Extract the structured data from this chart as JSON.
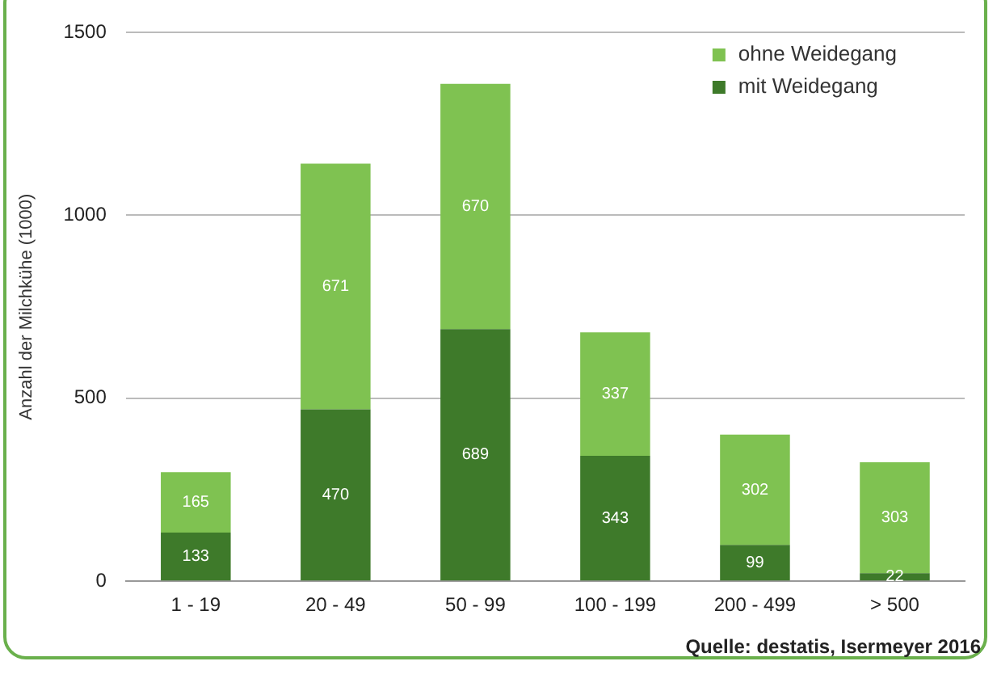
{
  "chart_data": {
    "type": "bar",
    "stacked": true,
    "ylabel": "Anzahl der Milchkühe (1000)",
    "categories": [
      "1 - 19",
      "20 - 49",
      "50 - 99",
      "100 - 199",
      "200 - 499",
      "> 500"
    ],
    "series": [
      {
        "name": "mit Weidegang",
        "color": "#3e7a2a",
        "values": [
          133,
          470,
          689,
          343,
          99,
          22
        ]
      },
      {
        "name": "ohne Weidegang",
        "color": "#7fc251",
        "values": [
          165,
          671,
          670,
          337,
          302,
          303
        ]
      }
    ],
    "ylim": [
      0,
      1500
    ],
    "yticks": [
      0,
      500,
      1000,
      1500
    ],
    "grid": "y",
    "legend": "top right",
    "data_labels": true,
    "annotations": [
      "Quelle: destatis, Isermeyer 2016"
    ]
  }
}
